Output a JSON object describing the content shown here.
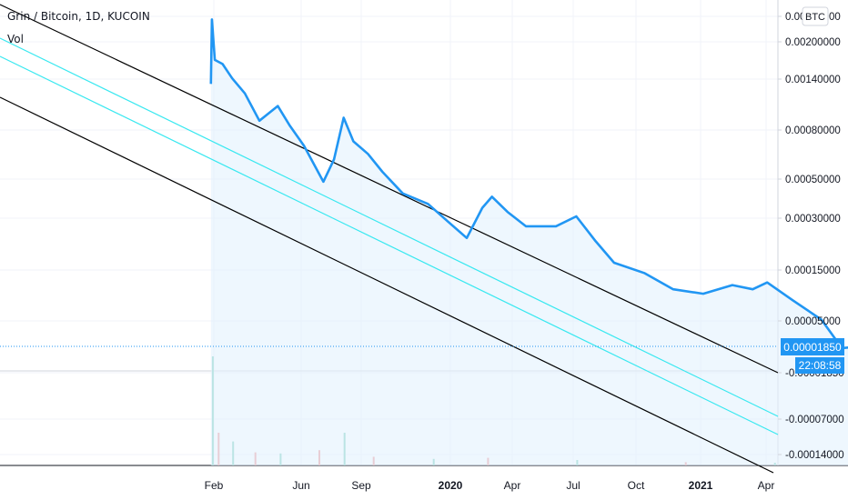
{
  "legend": {
    "title": "Grin / Bitcoin, 1D, KUCOIN",
    "volume_label": "Vol"
  },
  "currency_badge": "BTC",
  "current_price_label": "0.00001850",
  "countdown_label": "22:08:58",
  "colors": {
    "price_line": "#2196f3",
    "price_fill": "#e3f2fd",
    "channel_outer": "#000000",
    "channel_inner": "#38e8f0",
    "vol_up": "#7fcfbd",
    "vol_down": "#f09a9a",
    "grid": "#f0f3fa",
    "axis_text": "#131722",
    "price_badge": "#2196f3"
  },
  "chart_data": {
    "type": "line",
    "title": "Grin / Bitcoin, 1D, KUCOIN",
    "y_scale": "log",
    "y_ticks": [
      "0.00300000",
      "0.00200000",
      "0.00140000",
      "0.00080000",
      "0.00050000",
      "0.00030000",
      "0.00015000",
      "0.00005000",
      "0.00001850",
      "-0.00001850",
      "-0.00007000",
      "-0.00014000"
    ],
    "x_ticks": [
      "Feb",
      "Jun",
      "Sep",
      "2020",
      "Apr",
      "Jul",
      "Oct",
      "2021",
      "Apr"
    ],
    "grid": true,
    "series": [
      {
        "values": [
          [
            "2019-01-29",
            0.0011
          ],
          [
            "2019-01-30",
            0.003
          ],
          [
            "2019-02-02",
            0.0016
          ],
          [
            "2019-02-10",
            0.0015
          ],
          [
            "2019-02-20",
            0.0012
          ],
          [
            "2019-03-05",
            0.00095
          ],
          [
            "2019-03-20",
            0.00062
          ],
          [
            "2019-04-08",
            0.00078
          ],
          [
            "2019-04-20",
            0.00058
          ],
          [
            "2019-05-05",
            0.00042
          ],
          [
            "2019-05-25",
            0.00024
          ],
          [
            "2019-06-05",
            0.00034
          ],
          [
            "2019-06-15",
            0.00065
          ],
          [
            "2019-06-25",
            0.00045
          ],
          [
            "2019-07-10",
            0.00037
          ],
          [
            "2019-07-25",
            0.00028
          ],
          [
            "2019-08-15",
            0.0002
          ],
          [
            "2019-09-10",
            0.00017
          ],
          [
            "2019-09-30",
            0.00013
          ],
          [
            "2019-10-20",
            0.0001
          ],
          [
            "2019-11-05",
            0.00016
          ],
          [
            "2019-11-15",
            0.00019
          ],
          [
            "2019-12-01",
            0.00015
          ],
          [
            "2019-12-20",
            0.00012
          ],
          [
            "2020-01-20",
            0.00012
          ],
          [
            "2020-02-10",
            0.00014
          ],
          [
            "2020-03-01",
            9.5e-05
          ],
          [
            "2020-03-20",
            6.8e-05
          ],
          [
            "2020-04-20",
            5.8e-05
          ],
          [
            "2020-05-20",
            4.5e-05
          ],
          [
            "2020-06-20",
            4.2e-05
          ],
          [
            "2020-07-20",
            4.8e-05
          ],
          [
            "2020-08-10",
            4.5e-05
          ],
          [
            "2020-08-25",
            5e-05
          ],
          [
            "2020-09-20",
            3.8e-05
          ],
          [
            "2020-10-20",
            2.8e-05
          ],
          [
            "2020-11-10",
            1.8e-05
          ],
          [
            "2020-12-01",
            1.85e-05
          ]
        ]
      }
    ],
    "current_value": 1.85e-05,
    "volume": [
      [
        "2019-01-30",
        1.0
      ],
      [
        "2019-02-05",
        0.3
      ],
      [
        "2019-02-20",
        0.22
      ],
      [
        "2019-03-15",
        0.12
      ],
      [
        "2019-04-10",
        0.11
      ],
      [
        "2019-05-20",
        0.14
      ],
      [
        "2019-06-15",
        0.3
      ],
      [
        "2019-07-15",
        0.08
      ],
      [
        "2019-09-15",
        0.06
      ],
      [
        "2019-11-10",
        0.07
      ],
      [
        "2020-02-10",
        0.05
      ],
      [
        "2020-06-01",
        0.03
      ],
      [
        "2020-09-01",
        0.025
      ],
      [
        "2020-12-01",
        0.015
      ]
    ]
  }
}
